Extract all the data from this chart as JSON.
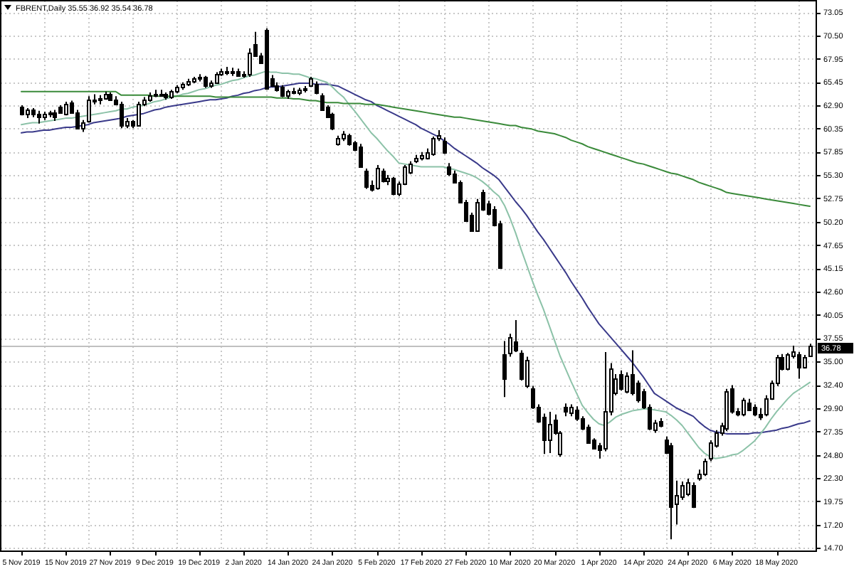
{
  "chart_data": {
    "type": "candlestick",
    "title": "FBRENT,Daily 35.55 36.92 35.54 36.78",
    "categories": [
      "5 Nov 2019",
      null,
      null,
      null,
      null,
      null,
      null,
      null,
      "15 Nov 2019",
      null,
      null,
      null,
      null,
      null,
      null,
      null,
      "27 Nov 2019",
      null,
      null,
      null,
      null,
      null,
      null,
      null,
      "9 Dec 2019",
      null,
      null,
      null,
      null,
      null,
      null,
      null,
      "19 Dec 2019",
      null,
      null,
      null,
      null,
      null,
      null,
      null,
      "2 Jan 2020",
      null,
      null,
      null,
      null,
      null,
      null,
      null,
      "14 Jan 2020",
      null,
      null,
      null,
      null,
      null,
      null,
      null,
      "24 Jan 2020",
      null,
      null,
      null,
      null,
      null,
      null,
      null,
      "5 Feb 2020",
      null,
      null,
      null,
      null,
      null,
      null,
      null,
      "17 Feb 2020",
      null,
      null,
      null,
      null,
      null,
      null,
      null,
      "27 Feb 2020",
      null,
      null,
      null,
      null,
      null,
      null,
      null,
      "10 Mar 2020",
      null,
      null,
      null,
      null,
      null,
      null,
      null,
      "20 Mar 2020",
      null,
      null,
      null,
      null,
      null,
      null,
      null,
      "1 Apr 2020",
      null,
      null,
      null,
      null,
      null,
      null,
      null,
      "14 Apr 2020",
      null,
      null,
      null,
      null,
      null,
      null,
      null,
      "24 Apr 2020",
      null,
      null,
      null,
      null,
      null,
      null,
      null,
      "6 May 2020",
      null,
      null,
      null,
      null,
      null,
      null,
      null,
      "18 May 2020",
      null,
      null,
      null,
      null,
      null,
      null
    ],
    "ohlc": [
      [
        62.7,
        62.9,
        61.8,
        61.9
      ],
      [
        61.9,
        62.6,
        61.5,
        62.4
      ],
      [
        62.4,
        62.6,
        61.6,
        61.9
      ],
      [
        61.9,
        62.3,
        60.9,
        61.6
      ],
      [
        61.6,
        62.2,
        61.3,
        61.9
      ],
      [
        61.9,
        62.3,
        61.6,
        62.1
      ],
      [
        62.1,
        62.4,
        61.2,
        61.6
      ],
      [
        62.7,
        62.9,
        62.0,
        62.2
      ],
      [
        62.0,
        63.3,
        61.8,
        63.0
      ],
      [
        63.2,
        63.4,
        62.0,
        62.2
      ],
      [
        62.2,
        62.4,
        60.3,
        60.5
      ],
      [
        60.5,
        61.3,
        60.0,
        61.0
      ],
      [
        61.2,
        63.9,
        61.0,
        63.6
      ],
      [
        63.6,
        64.1,
        63.0,
        63.4
      ],
      [
        63.5,
        64.0,
        63.0,
        63.7
      ],
      [
        63.7,
        64.4,
        63.5,
        64.1
      ],
      [
        64.1,
        64.3,
        63.4,
        63.6
      ],
      [
        63.6,
        63.9,
        62.9,
        63.1
      ],
      [
        63.1,
        63.3,
        60.4,
        60.8
      ],
      [
        60.8,
        61.5,
        60.4,
        61.2
      ],
      [
        61.2,
        61.3,
        60.4,
        60.8
      ],
      [
        60.8,
        63.3,
        60.7,
        63.0
      ],
      [
        63.0,
        63.8,
        62.8,
        63.6
      ],
      [
        63.6,
        64.3,
        63.3,
        64.0
      ],
      [
        64.0,
        64.6,
        63.8,
        64.2
      ],
      [
        64.2,
        64.6,
        63.9,
        64.1
      ],
      [
        64.1,
        64.3,
        63.5,
        63.8
      ],
      [
        63.8,
        64.6,
        63.6,
        64.4
      ],
      [
        64.4,
        65.1,
        64.2,
        64.9
      ],
      [
        64.9,
        65.4,
        64.6,
        65.2
      ],
      [
        65.2,
        65.8,
        65.0,
        65.5
      ],
      [
        65.5,
        66.0,
        65.3,
        65.8
      ],
      [
        65.8,
        66.3,
        65.5,
        66.0
      ],
      [
        66.0,
        66.1,
        64.8,
        65.0
      ],
      [
        65.0,
        65.6,
        64.8,
        65.4
      ],
      [
        65.4,
        66.5,
        65.3,
        66.3
      ],
      [
        66.3,
        66.9,
        66.1,
        66.6
      ],
      [
        66.6,
        67.1,
        66.2,
        66.4
      ],
      [
        66.4,
        67.0,
        66.1,
        66.7
      ],
      [
        66.7,
        66.9,
        66.0,
        66.2
      ],
      [
        66.2,
        66.6,
        65.9,
        66.3
      ],
      [
        66.3,
        69.1,
        66.0,
        68.6
      ],
      [
        69.6,
        70.9,
        68.2,
        68.4
      ],
      [
        68.4,
        68.6,
        67.4,
        67.6
      ],
      [
        71.1,
        71.3,
        64.6,
        64.8
      ],
      [
        65.9,
        66.2,
        64.9,
        65.1
      ],
      [
        65.1,
        65.4,
        64.4,
        64.6
      ],
      [
        64.9,
        65.1,
        63.8,
        64.0
      ],
      [
        64.0,
        64.6,
        63.6,
        64.4
      ],
      [
        64.4,
        64.8,
        64.1,
        64.3
      ],
      [
        64.3,
        64.8,
        64.0,
        64.6
      ],
      [
        64.6,
        65.0,
        64.3,
        64.8
      ],
      [
        65.1,
        66.0,
        64.9,
        65.8
      ],
      [
        65.3,
        65.5,
        64.1,
        64.3
      ],
      [
        64.0,
        64.2,
        62.3,
        62.5
      ],
      [
        62.7,
        62.9,
        61.5,
        61.7
      ],
      [
        61.9,
        62.1,
        60.2,
        60.4
      ],
      [
        58.7,
        59.6,
        58.5,
        59.3
      ],
      [
        59.3,
        60.1,
        59.0,
        59.8
      ],
      [
        59.6,
        59.8,
        58.5,
        58.7
      ],
      [
        58.8,
        59.0,
        57.9,
        58.1
      ],
      [
        58.4,
        58.7,
        56.1,
        56.3
      ],
      [
        55.8,
        56.0,
        53.8,
        54.0
      ],
      [
        54.3,
        54.7,
        53.5,
        53.7
      ],
      [
        53.9,
        56.4,
        53.7,
        56.1
      ],
      [
        55.8,
        56.0,
        54.5,
        54.7
      ],
      [
        54.7,
        55.3,
        54.2,
        55.0
      ],
      [
        55.0,
        55.1,
        53.1,
        53.3
      ],
      [
        53.3,
        54.6,
        53.0,
        54.4
      ],
      [
        54.4,
        56.4,
        54.2,
        56.2
      ],
      [
        55.6,
        56.8,
        55.4,
        56.5
      ],
      [
        56.8,
        57.5,
        56.6,
        57.2
      ],
      [
        57.1,
        57.8,
        56.9,
        57.5
      ],
      [
        57.2,
        58.2,
        57.0,
        57.8
      ],
      [
        57.6,
        59.5,
        57.4,
        59.3
      ],
      [
        59.3,
        60.2,
        59.0,
        59.6
      ],
      [
        59.1,
        59.4,
        57.6,
        57.8
      ],
      [
        56.3,
        56.6,
        55.2,
        55.4
      ],
      [
        55.5,
        55.8,
        54.4,
        54.6
      ],
      [
        54.5,
        54.7,
        52.2,
        52.4
      ],
      [
        52.4,
        52.6,
        50.2,
        50.4
      ],
      [
        50.9,
        51.2,
        49.1,
        49.3
      ],
      [
        49.3,
        52.7,
        49.1,
        52.4
      ],
      [
        53.4,
        53.7,
        51.4,
        51.6
      ],
      [
        52.2,
        52.5,
        50.9,
        51.1
      ],
      [
        51.6,
        51.9,
        49.7,
        49.9
      ],
      [
        50.1,
        50.3,
        45.1,
        45.3
      ],
      [
        35.7,
        37.2,
        31.1,
        33.1
      ],
      [
        35.9,
        38.0,
        35.5,
        37.7
      ],
      [
        37.2,
        39.5,
        36.0,
        36.2
      ],
      [
        35.9,
        36.2,
        32.9,
        33.1
      ],
      [
        32.4,
        35.5,
        32.1,
        35.2
      ],
      [
        32.0,
        32.3,
        29.8,
        30.0
      ],
      [
        30.0,
        30.3,
        28.3,
        28.5
      ],
      [
        29.0,
        29.3,
        24.9,
        26.4
      ],
      [
        26.4,
        29.5,
        25.0,
        28.2
      ],
      [
        28.7,
        29.2,
        27.0,
        27.3
      ],
      [
        24.9,
        27.4,
        24.6,
        27.2
      ],
      [
        30.0,
        30.4,
        29.0,
        29.5
      ],
      [
        29.4,
        30.3,
        29.0,
        30.0
      ],
      [
        29.8,
        30.1,
        28.5,
        28.8
      ],
      [
        28.8,
        29.0,
        27.5,
        27.7
      ],
      [
        27.9,
        28.1,
        26.0,
        26.2
      ],
      [
        26.4,
        26.6,
        25.4,
        25.6
      ],
      [
        25.9,
        26.1,
        24.4,
        25.4
      ],
      [
        25.6,
        36.0,
        25.2,
        29.5
      ],
      [
        29.5,
        34.8,
        29.1,
        34.3
      ],
      [
        31.6,
        33.6,
        31.3,
        33.1
      ],
      [
        33.6,
        34.0,
        31.8,
        32.1
      ],
      [
        31.8,
        33.8,
        31.5,
        33.4
      ],
      [
        33.6,
        36.2,
        31.3,
        31.6
      ],
      [
        32.6,
        32.9,
        30.5,
        30.8
      ],
      [
        31.8,
        32.0,
        29.8,
        30.0
      ],
      [
        30.0,
        30.3,
        27.5,
        27.7
      ],
      [
        27.5,
        28.6,
        27.2,
        28.3
      ],
      [
        28.5,
        28.8,
        27.8,
        28.0
      ],
      [
        26.4,
        26.8,
        24.9,
        25.1
      ],
      [
        25.9,
        26.1,
        15.6,
        19.2
      ],
      [
        19.5,
        22.0,
        17.2,
        20.5
      ],
      [
        20.3,
        21.9,
        19.9,
        21.5
      ],
      [
        20.6,
        22.2,
        20.3,
        21.8
      ],
      [
        21.5,
        21.8,
        19.0,
        19.2
      ],
      [
        22.3,
        23.2,
        22.0,
        22.8
      ],
      [
        22.8,
        24.4,
        22.5,
        24.1
      ],
      [
        24.4,
        26.4,
        24.1,
        26.2
      ],
      [
        25.9,
        27.5,
        25.6,
        27.2
      ],
      [
        27.2,
        28.3,
        26.9,
        28.0
      ],
      [
        27.7,
        32.0,
        27.4,
        31.8
      ],
      [
        32.1,
        32.4,
        29.3,
        29.5
      ],
      [
        29.5,
        29.9,
        29.0,
        29.3
      ],
      [
        29.3,
        31.0,
        29.0,
        30.8
      ],
      [
        30.5,
        30.9,
        29.6,
        29.8
      ],
      [
        30.0,
        30.3,
        29.0,
        29.3
      ],
      [
        29.3,
        29.9,
        28.6,
        29.0
      ],
      [
        29.2,
        31.3,
        29.0,
        31.0
      ],
      [
        31.0,
        32.9,
        30.8,
        32.6
      ],
      [
        32.6,
        35.7,
        32.3,
        35.4
      ],
      [
        35.4,
        35.8,
        34.0,
        34.2
      ],
      [
        34.2,
        35.9,
        34.0,
        35.7
      ],
      [
        35.6,
        36.7,
        35.3,
        36.1
      ],
      [
        35.8,
        36.0,
        33.1,
        34.4
      ],
      [
        34.4,
        35.7,
        34.2,
        35.4
      ],
      [
        35.55,
        36.92,
        35.54,
        36.78
      ]
    ],
    "series": [
      {
        "type": "line",
        "color": "#3a3a8a",
        "values": [
          59.9,
          60.0,
          60.0,
          60.1,
          60.2,
          60.2,
          60.3,
          60.4,
          60.5,
          60.5,
          60.6,
          60.7,
          60.8,
          61.0,
          61.1,
          61.2,
          61.3,
          61.4,
          61.5,
          61.7,
          61.8,
          61.9,
          62.0,
          62.2,
          62.4,
          62.5,
          62.7,
          62.8,
          62.9,
          63.0,
          63.1,
          63.2,
          63.3,
          63.4,
          63.5,
          63.5,
          63.6,
          63.7,
          63.9,
          64.0,
          64.2,
          64.3,
          64.5,
          64.6,
          64.8,
          64.9,
          64.9,
          65.0,
          65.1,
          65.2,
          65.3,
          65.3,
          65.3,
          65.2,
          65.2,
          65.2,
          65.1,
          65.0,
          64.7,
          64.4,
          64.1,
          63.8,
          63.5,
          63.3,
          62.9,
          62.6,
          62.3,
          62.0,
          61.7,
          61.4,
          61.1,
          60.8,
          60.4,
          60.1,
          59.8,
          59.5,
          59.1,
          58.7,
          58.2,
          57.8,
          57.4,
          57.0,
          56.6,
          56.1,
          55.7,
          55.3,
          54.8,
          54.0,
          53.2,
          52.4,
          51.7,
          50.9,
          50.0,
          49.1,
          48.3,
          47.4,
          46.5,
          45.6,
          44.7,
          43.7,
          42.8,
          41.9,
          40.9,
          40.0,
          39.1,
          38.4,
          37.7,
          37.0,
          36.3,
          35.6,
          34.9,
          34.1,
          33.3,
          32.4,
          31.5,
          31.1,
          30.7,
          30.3,
          29.9,
          29.6,
          29.3,
          29.0,
          28.4,
          27.9,
          27.5,
          27.3,
          27.2,
          27.1,
          27.1,
          27.1,
          27.1,
          27.1,
          27.2,
          27.2,
          27.3,
          27.4,
          27.5,
          27.7,
          27.8,
          28.0,
          28.2,
          28.3,
          28.5
        ]
      },
      {
        "type": "line",
        "color": "#8cc2a8",
        "values": [
          60.8,
          60.9,
          61.0,
          61.0,
          61.1,
          61.2,
          61.3,
          61.4,
          61.5,
          61.5,
          61.6,
          61.7,
          61.8,
          61.9,
          62.0,
          62.1,
          62.2,
          62.3,
          62.5,
          62.5,
          62.7,
          62.8,
          62.9,
          63.1,
          63.3,
          63.4,
          63.6,
          63.8,
          63.9,
          64.1,
          64.2,
          64.4,
          64.6,
          64.7,
          64.9,
          65.1,
          65.2,
          65.4,
          65.6,
          65.7,
          65.9,
          66.1,
          66.2,
          66.4,
          66.6,
          66.5,
          66.5,
          66.4,
          66.4,
          66.3,
          66.3,
          66.1,
          65.9,
          65.8,
          65.6,
          65.4,
          64.9,
          64.3,
          63.8,
          63.0,
          62.3,
          61.5,
          60.7,
          59.9,
          59.3,
          58.6,
          57.9,
          57.3,
          56.6,
          56.5,
          56.4,
          56.3,
          56.2,
          56.2,
          56.2,
          56.2,
          56.2,
          56.0,
          55.9,
          55.7,
          55.5,
          55.3,
          55.0,
          54.6,
          54.1,
          53.5,
          53.0,
          52.0,
          50.6,
          49.0,
          47.2,
          45.5,
          43.8,
          42.2,
          40.7,
          39.0,
          37.3,
          35.6,
          34.2,
          32.8,
          31.5,
          30.2,
          29.4,
          28.7,
          28.2,
          28.0,
          28.4,
          28.9,
          29.2,
          29.4,
          29.6,
          29.7,
          29.8,
          29.8,
          29.7,
          29.6,
          29.5,
          29.1,
          28.6,
          28.0,
          27.2,
          26.4,
          25.6,
          25.0,
          24.6,
          24.4,
          24.5,
          24.6,
          24.8,
          24.9,
          25.3,
          25.8,
          26.3,
          27.0,
          27.8,
          28.7,
          29.5,
          30.2,
          30.9,
          31.5,
          31.9,
          32.3,
          32.7
        ]
      },
      {
        "type": "line",
        "color": "#3a8a3a",
        "values": [
          64.4,
          64.4,
          64.4,
          64.4,
          64.4,
          64.4,
          64.4,
          64.4,
          64.4,
          64.4,
          64.4,
          64.4,
          64.4,
          64.4,
          64.4,
          64.4,
          64.4,
          64.4,
          64.0,
          64.0,
          64.0,
          64.0,
          64.0,
          64.0,
          63.9,
          63.9,
          63.9,
          63.9,
          63.9,
          63.9,
          63.9,
          63.9,
          63.9,
          63.9,
          63.9,
          63.8,
          63.8,
          63.8,
          63.8,
          63.8,
          63.8,
          63.8,
          63.8,
          63.8,
          63.8,
          63.8,
          63.7,
          63.7,
          63.7,
          63.6,
          63.6,
          63.5,
          63.4,
          63.4,
          63.3,
          63.2,
          63.2,
          63.2,
          63.1,
          63.1,
          63.1,
          63.1,
          63.0,
          63.0,
          63.0,
          62.9,
          62.8,
          62.7,
          62.6,
          62.5,
          62.4,
          62.3,
          62.2,
          62.1,
          62.0,
          61.9,
          61.8,
          61.7,
          61.6,
          61.6,
          61.5,
          61.4,
          61.3,
          61.2,
          61.1,
          61.0,
          60.9,
          60.8,
          60.7,
          60.7,
          60.5,
          60.4,
          60.3,
          60.1,
          60.0,
          59.9,
          59.8,
          59.6,
          59.4,
          59.1,
          58.9,
          58.7,
          58.4,
          58.2,
          58.0,
          57.8,
          57.6,
          57.4,
          57.2,
          57.0,
          56.8,
          56.6,
          56.5,
          56.3,
          56.1,
          55.9,
          55.7,
          55.5,
          55.4,
          55.2,
          55.0,
          54.8,
          54.5,
          54.3,
          54.1,
          53.9,
          53.7,
          53.4,
          53.3,
          53.2,
          53.1,
          53.0,
          52.9,
          52.8,
          52.7,
          52.6,
          52.5,
          52.4,
          52.3,
          52.2,
          52.1,
          52.0,
          51.9
        ]
      }
    ],
    "ylim": [
      14.3,
      74.3
    ],
    "yticks": [
      73.05,
      {
        "value": 70.5,
        "label": "70.50"
      },
      67.95,
      65.45,
      {
        "value": 62.9,
        "label": "62.90"
      },
      60.35,
      57.85,
      {
        "value": 55.3,
        "label": "55.30"
      },
      52.75,
      {
        "value": 50.2,
        "label": "50.20"
      },
      47.65,
      45.15,
      {
        "value": 42.6,
        "label": "42.60"
      },
      40.05,
      37.55,
      {
        "value": 35,
        "label": "35.00"
      },
      {
        "value": 32.4,
        "label": "32.40"
      },
      {
        "value": 29.9,
        "label": "29.90"
      },
      27.35,
      {
        "value": 24.8,
        "label": "24.80"
      },
      {
        "value": 22.3,
        "label": "22.30"
      },
      19.75,
      {
        "value": 17.2,
        "label": "17.20"
      },
      {
        "value": 14.7,
        "label": "14.70"
      }
    ],
    "grid": true,
    "ref_lines": [
      {
        "axis": "y",
        "value": 36.78,
        "label": "36.78",
        "color": "#c0c0c0"
      }
    ]
  }
}
